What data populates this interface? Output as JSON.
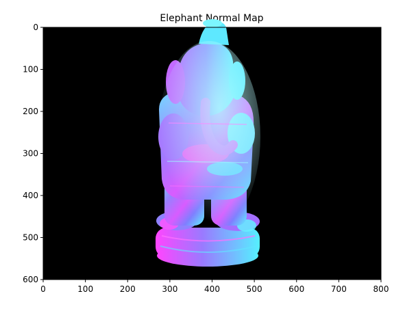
{
  "chart_data": {
    "type": "image",
    "title": "Elephant Normal Map",
    "xlabel": "",
    "ylabel": "",
    "xlim": [
      0,
      800
    ],
    "ylim": [
      600,
      0
    ],
    "xticks": [
      0,
      100,
      200,
      300,
      400,
      500,
      600,
      700,
      800
    ],
    "yticks": [
      0,
      100,
      200,
      300,
      400,
      500,
      600
    ],
    "xtick_labels": [
      "0",
      "100",
      "200",
      "300",
      "400",
      "500",
      "600",
      "700",
      "800"
    ],
    "ytick_labels": [
      "0",
      "100",
      "200",
      "300",
      "400",
      "500",
      "600"
    ],
    "grid": false,
    "background_color": "#000000",
    "colors": {
      "normal_blue": "#7f7fff",
      "normal_magenta": "#ff40ff",
      "normal_cyan": "#40ffff",
      "normal_purple": "#b070ff"
    },
    "statue_extent": {
      "x": [
        225,
        515
      ],
      "y": [
        22,
        580
      ]
    }
  }
}
